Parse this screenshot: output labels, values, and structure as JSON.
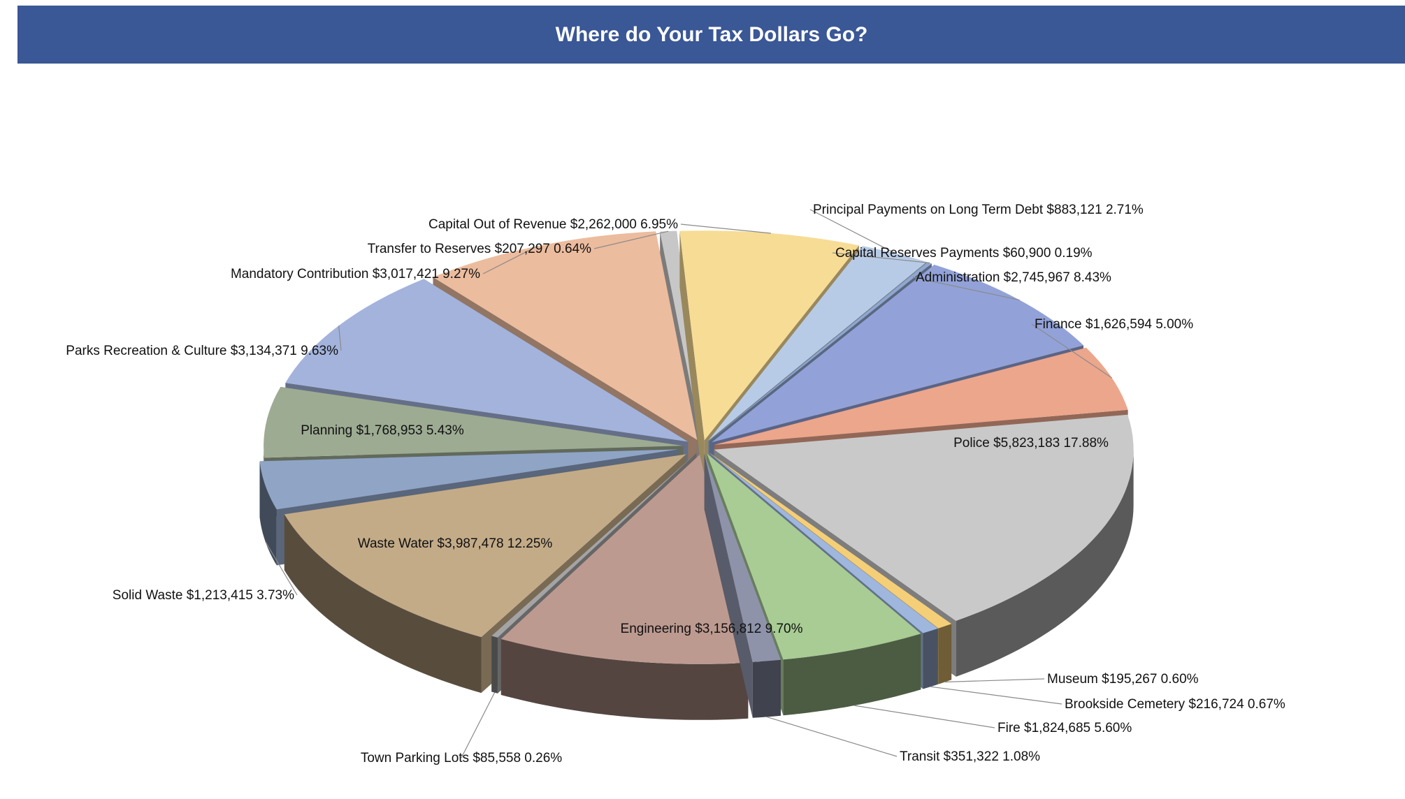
{
  "header": {
    "title": "Where do Your Tax Dollars Go?",
    "background": "#3a5796"
  },
  "chart_data": {
    "type": "pie",
    "title": "Where do Your Tax Dollars Go?",
    "style": "3D exploded pie",
    "slices": [
      {
        "name": "Capital Out of Revenue",
        "amount": "$2,262,000",
        "percent": "6.95%",
        "value": 2262000,
        "pct": 6.95,
        "color": "#f7dc95"
      },
      {
        "name": "Principal Payments on Long Term Debt",
        "amount": "$883,121",
        "percent": "2.71%",
        "value": 883121,
        "pct": 2.71,
        "color": "#b8cbe6"
      },
      {
        "name": "Capital Reserves Payments",
        "amount": "$60,900",
        "percent": "0.19%",
        "value": 60900,
        "pct": 0.19,
        "color": "#8fa7cf"
      },
      {
        "name": "Administration",
        "amount": "$2,745,967",
        "percent": "8.43%",
        "value": 2745967,
        "pct": 8.43,
        "color": "#92a2d8"
      },
      {
        "name": "Finance",
        "amount": "$1,626,594",
        "percent": "5.00%",
        "value": 1626594,
        "pct": 5.0,
        "color": "#eca68c"
      },
      {
        "name": "Police",
        "amount": "$5,823,183",
        "percent": "17.88%",
        "value": 5823183,
        "pct": 17.88,
        "color": "#c9c9c9"
      },
      {
        "name": "Museum",
        "amount": "$195,267",
        "percent": "0.60%",
        "value": 195267,
        "pct": 0.6,
        "color": "#f5ce78"
      },
      {
        "name": "Brookside Cemetery",
        "amount": "$216,724",
        "percent": "0.67%",
        "value": 216724,
        "pct": 0.67,
        "color": "#9fb6dd"
      },
      {
        "name": "Fire",
        "amount": "$1,824,685",
        "percent": "5.60%",
        "value": 1824685,
        "pct": 5.6,
        "color": "#a8cc94"
      },
      {
        "name": "Transit",
        "amount": "$351,322",
        "percent": "1.08%",
        "value": 351322,
        "pct": 1.08,
        "color": "#8e93aa"
      },
      {
        "name": "Engineering",
        "amount": "$3,156,812",
        "percent": "9.70%",
        "value": 3156812,
        "pct": 9.7,
        "color": "#bd9a90"
      },
      {
        "name": "Town Parking Lots",
        "amount": "$85,558",
        "percent": "0.26%",
        "value": 85558,
        "pct": 0.26,
        "color": "#a4a4a4"
      },
      {
        "name": "Waste Water",
        "amount": "$3,987,478",
        "percent": "12.25%",
        "value": 3987478,
        "pct": 12.25,
        "color": "#c3ab88"
      },
      {
        "name": "Solid Waste",
        "amount": "$1,213,415",
        "percent": "3.73%",
        "value": 1213415,
        "pct": 3.73,
        "color": "#90a4c6"
      },
      {
        "name": "Planning",
        "amount": "$1,768,953",
        "percent": "5.43%",
        "value": 1768953,
        "pct": 5.43,
        "color": "#9dab92"
      },
      {
        "name": "Parks Recreation & Culture",
        "amount": "$3,134,371",
        "percent": "9.63%",
        "value": 3134371,
        "pct": 9.63,
        "color": "#a3b3dc"
      },
      {
        "name": "Mandatory Contribution",
        "amount": "$3,017,421",
        "percent": "9.27%",
        "value": 3017421,
        "pct": 9.27,
        "color": "#ecbc9e"
      },
      {
        "name": "Transfer to Reserves",
        "amount": "$207,297",
        "percent": "0.64%",
        "value": 207297,
        "pct": 0.64,
        "color": "#c7c7c7"
      }
    ]
  }
}
